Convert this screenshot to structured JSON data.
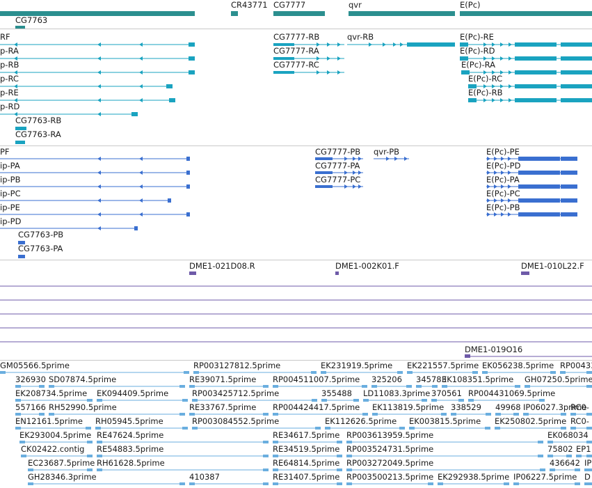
{
  "colors": {
    "gene": "#2b8f8f",
    "mrna": "#1aa3c0",
    "cds": "#3a6fd0",
    "clone": "#6e5aa8",
    "est": "#6aaedf",
    "separator": "#c8c8c8"
  },
  "genes": [
    "CR43771",
    "CG7777",
    "qvr",
    "E(Pc)",
    "CG7763"
  ],
  "mrna": [
    "RF",
    "p-RA",
    "p-RB",
    "p-RC",
    "p-RE",
    "p-RD",
    "CG7763-RB",
    "CG7763-RA",
    "CG7777-RB",
    "CG7777-RA",
    "CG7777-RC",
    "qvr-RB",
    "E(Pc)-RE",
    "E(Pc)-RD",
    "E(Pc)-RA",
    "E(Pc)-RC",
    "E(Pc)-RB"
  ],
  "cds": [
    "PF",
    "ip-PA",
    "ip-PB",
    "ip-PC",
    "ip-PE",
    "ip-PD",
    "CG7763-PB",
    "CG7763-PA",
    "CG7777-PB",
    "CG7777-PA",
    "CG7777-PC",
    "qvr-PB",
    "E(Pc)-PE",
    "E(Pc)-PD",
    "E(Pc)-PA",
    "E(Pc)-PC",
    "E(Pc)-PB"
  ],
  "clones": [
    "DME1-021D08.R",
    "DME1-002K01.F",
    "DME1-010L22.F",
    "DME1-019O16"
  ],
  "ests": [
    "GM05566.5prime",
    "RP003127812.5prime",
    "EK231919.5prime",
    "EK221557.5prime",
    "EK056238.5prime",
    "RP00433",
    "326930",
    "SD07874.5prime",
    "RE39071.5prime",
    "RP004511007.5prime",
    "325206",
    "345783",
    "EK108351.5prime",
    "GH07250.5prime",
    "EK208734.5prime",
    "EK094409.5prime",
    "RP003425712.5prime",
    "355488",
    "LD11083.3prime",
    "370561",
    "RP004431069.5prime",
    "557166",
    "RH52990.5prime",
    "RE33767.5prime",
    "RP004424417.5prime",
    "EK113819.5prime",
    "338529",
    "49968",
    "IP06027.3prime",
    "RC0-",
    "EN12161.5prime",
    "RH05945.5prime",
    "RP003084552.5prime",
    "EK112626.5prime",
    "EK003815.5prime",
    "EK250802.5prime",
    "RC0-",
    "EK293004.5prime",
    "RE47624.5prime",
    "RE34617.5prime",
    "RP003613959.5prime",
    "EK068034",
    "CK02422.contig",
    "RE54883.5prime",
    "RE34519.5prime",
    "RP003524731.5prime",
    "75802",
    "EP1",
    "EC23687.5prime",
    "RH61628.5prime",
    "RE64814.5prime",
    "RP003272049.5prime",
    "436642",
    "IP",
    "GH28346.3prime",
    "410387",
    "RE31407.5prime",
    "RP003500213.5prime",
    "EK292938.5prime",
    "IP06227.5prime",
    "D"
  ]
}
